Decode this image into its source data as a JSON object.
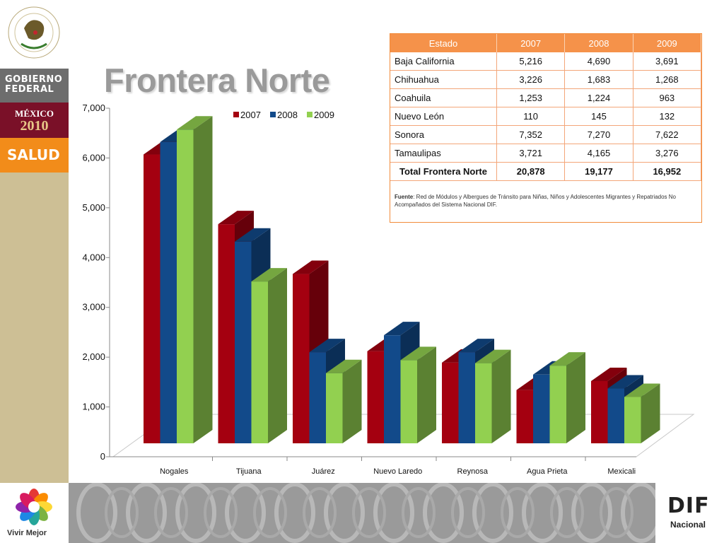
{
  "title": "Frontera Norte",
  "sidebar": {
    "gobierno_line1": "GOBIERNO",
    "gobierno_line2": "FEDERAL",
    "mexico_line1": "MÉXICO",
    "mexico_line2": "2010",
    "salud": "SALUD"
  },
  "footer": {
    "vivir_label": "Vivir Mejor",
    "dif_logo": "DIF",
    "dif_sub": "Nacional"
  },
  "colors": {
    "series_2007": "#a40010",
    "series_2008": "#124a8a",
    "series_2009": "#92d050",
    "table_header": "#f5924a",
    "title": "#9a9a9a"
  },
  "chart_data": {
    "type": "bar",
    "title": "Frontera Norte",
    "categories": [
      "Nogales",
      "Tijuana",
      "Juárez",
      "Nuevo Laredo",
      "Reynosa",
      "Agua Prieta",
      "Mexicali"
    ],
    "series": [
      {
        "name": "2007",
        "values": [
          5800,
          4400,
          3400,
          1850,
          1620,
          1070,
          1250
        ]
      },
      {
        "name": "2008",
        "values": [
          6050,
          4050,
          1830,
          2170,
          1830,
          1380,
          1100
        ]
      },
      {
        "name": "2009",
        "values": [
          6300,
          3250,
          1410,
          1670,
          1610,
          1560,
          930
        ]
      }
    ],
    "ylim": [
      0,
      7000
    ],
    "yticks": [
      "0",
      "1,000",
      "2,000",
      "3,000",
      "4,000",
      "5,000",
      "6,000",
      "7,000"
    ],
    "legend_position": "top",
    "style": "3d-clustered-columns",
    "grid": false
  },
  "table": {
    "headers": [
      "Estado",
      "2007",
      "2008",
      "2009"
    ],
    "rows": [
      {
        "estado": "Baja California",
        "v2007": "5,216",
        "v2008": "4,690",
        "v2009": "3,691"
      },
      {
        "estado": "Chihuahua",
        "v2007": "3,226",
        "v2008": "1,683",
        "v2009": "1,268"
      },
      {
        "estado": "Coahuila",
        "v2007": "1,253",
        "v2008": "1,224",
        "v2009": "963"
      },
      {
        "estado": "Nuevo León",
        "v2007": "110",
        "v2008": "145",
        "v2009": "132"
      },
      {
        "estado": "Sonora",
        "v2007": "7,352",
        "v2008": "7,270",
        "v2009": "7,622"
      },
      {
        "estado": "Tamaulipas",
        "v2007": "3,721",
        "v2008": "4,165",
        "v2009": "3,276"
      }
    ],
    "total": {
      "estado": "Total Frontera Norte",
      "v2007": "20,878",
      "v2008": "19,177",
      "v2009": "16,952"
    },
    "source_label": "Fuente",
    "source_text": ": Red de Módulos y Albergues de Tránsito para Niñas, Niños y Adolescentes Migrantes y Repatriados No Acompañados del Sistema Nacional DIF."
  }
}
